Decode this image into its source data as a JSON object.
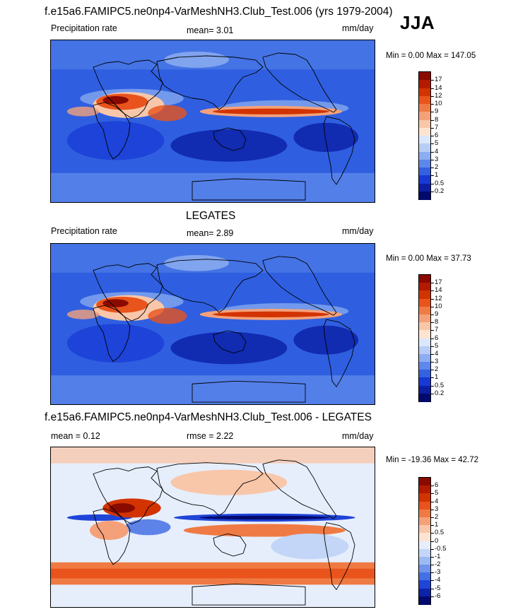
{
  "season": "JJA",
  "panels": [
    {
      "title": "f.e15a6.FAMIPC5.ne0np4-VarMeshNH3.Club_Test.006 (yrs 1979-2004)",
      "left_text": "Precipitation rate",
      "center_text": "mean=   3.01",
      "units": "mm/day",
      "minmax": "Min =    0.00 Max = 147.05",
      "levels": [
        "17",
        "14",
        "12",
        "10",
        "9",
        "8",
        "7",
        "6",
        "5",
        "4",
        "3",
        "2",
        "1",
        "0.5",
        "0.2"
      ],
      "colors": [
        "#8a0a00",
        "#b31a00",
        "#d23300",
        "#e9531c",
        "#f07a44",
        "#f4a17a",
        "#f8c7aa",
        "#fce4d0",
        "#dbe7fb",
        "#b7cdf6",
        "#8cadf0",
        "#5d87ea",
        "#3461e2",
        "#1839d6",
        "#0c1fa4",
        "#030a6e"
      ],
      "map_type": "precip"
    },
    {
      "title": "LEGATES",
      "left_text": "Precipitation rate",
      "center_text": "mean=   2.89",
      "units": "mm/day",
      "minmax": "Min =    0.00 Max =  37.73",
      "levels": [
        "17",
        "14",
        "12",
        "10",
        "9",
        "8",
        "7",
        "6",
        "5",
        "4",
        "3",
        "2",
        "1",
        "0.5",
        "0.2"
      ],
      "colors": [
        "#8a0a00",
        "#b31a00",
        "#d23300",
        "#e9531c",
        "#f07a44",
        "#f4a17a",
        "#f8c7aa",
        "#fce4d0",
        "#dbe7fb",
        "#b7cdf6",
        "#8cadf0",
        "#5d87ea",
        "#3461e2",
        "#1839d6",
        "#0c1fa4",
        "#030a6e"
      ],
      "map_type": "precip"
    },
    {
      "title": "f.e15a6.FAMIPC5.ne0np4-VarMeshNH3.Club_Test.006 - LEGATES",
      "left_text": "mean =   0.12",
      "center_text": "rmse =   2.22",
      "units": "mm/day",
      "minmax": "Min = -19.36 Max =  42.72",
      "levels": [
        "6",
        "5",
        "4",
        "3",
        "2",
        "1",
        "0.5",
        "0",
        "-0.5",
        "-1",
        "-2",
        "-3",
        "-4",
        "-5",
        "-6"
      ],
      "colors": [
        "#8a0a00",
        "#b31a00",
        "#d23300",
        "#e9531c",
        "#f07a44",
        "#f4a17a",
        "#f8c7aa",
        "#fce4d0",
        "#e6eefc",
        "#c3d6f7",
        "#9bbaf2",
        "#6f94ec",
        "#4470e5",
        "#1f44d8",
        "#0c22a8",
        "#030a6e"
      ],
      "map_type": "diff"
    }
  ]
}
